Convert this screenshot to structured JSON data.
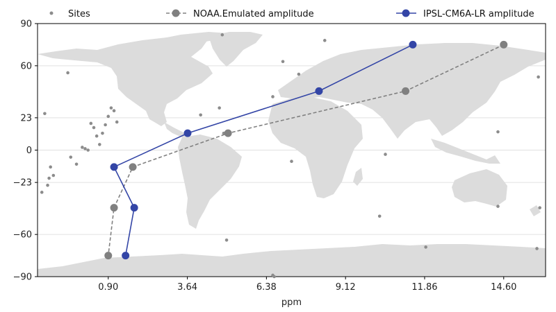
{
  "chart_data": {
    "type": "line",
    "xlabel": "ppm",
    "ylabel": "",
    "xlim": [
      -1.55,
      16.05
    ],
    "ylim": [
      -90,
      90
    ],
    "xticks": [
      0.9,
      3.64,
      6.38,
      9.12,
      11.86,
      14.6
    ],
    "xtick_labels": [
      "0.90",
      "3.64",
      "6.38",
      "9.12",
      "11.86",
      "14.60"
    ],
    "yticks": [
      -90,
      -60,
      -23,
      0,
      23,
      60,
      90
    ],
    "ytick_labels": [
      "−90",
      "−60",
      "−23",
      "0",
      "23",
      "60",
      "90"
    ],
    "grid": "horizontal",
    "legend_position": "top",
    "colors": {
      "sites": "#8c8c8c",
      "noaa": "#808080",
      "ipsl": "#3345a6",
      "land": "#dcdcdc"
    },
    "series": [
      {
        "name": "Sites",
        "style": "scatter",
        "x": [
          -1.3,
          -1.0,
          -1.1,
          -1.2,
          -1.4,
          -1.15,
          -0.5,
          -0.4,
          -0.2,
          0.0,
          0.1,
          0.2,
          0.3,
          0.4,
          0.5,
          0.6,
          0.7,
          0.8,
          0.9,
          1.0,
          1.1,
          1.2,
          4.1,
          4.75,
          5.0,
          4.9,
          4.85,
          6.6,
          6.95,
          7.5,
          7.25,
          8.4,
          10.5,
          10.3,
          11.9,
          14.4,
          14.4,
          15.8,
          15.85,
          15.75,
          6.65,
          6.6
        ],
        "y": [
          26,
          -18,
          -12,
          -25,
          -30,
          -20,
          55,
          -5,
          -10,
          2,
          1,
          0,
          19,
          16,
          10,
          4,
          12,
          18,
          24,
          30,
          28,
          20,
          25,
          30,
          -64,
          12,
          82,
          38,
          63,
          54,
          -8,
          78,
          -3,
          -47,
          -69,
          13,
          -40,
          52,
          -41,
          -70,
          -90,
          -89
        ],
        "tooltip_hidden": false
      },
      {
        "name": "NOAA.Emulated amplitude",
        "style": "dashed-line-markers",
        "x": [
          14.6,
          11.2,
          5.05,
          1.75,
          1.1,
          0.9
        ],
        "y": [
          75,
          42,
          12,
          -12,
          -41,
          -75
        ]
      },
      {
        "name": "IPSL-CM6A-LR amplitude",
        "style": "solid-line-markers",
        "x": [
          11.45,
          8.2,
          3.65,
          1.1,
          1.8,
          1.5
        ],
        "y": [
          75,
          42,
          12,
          -12,
          -41,
          -75
        ]
      }
    ]
  }
}
